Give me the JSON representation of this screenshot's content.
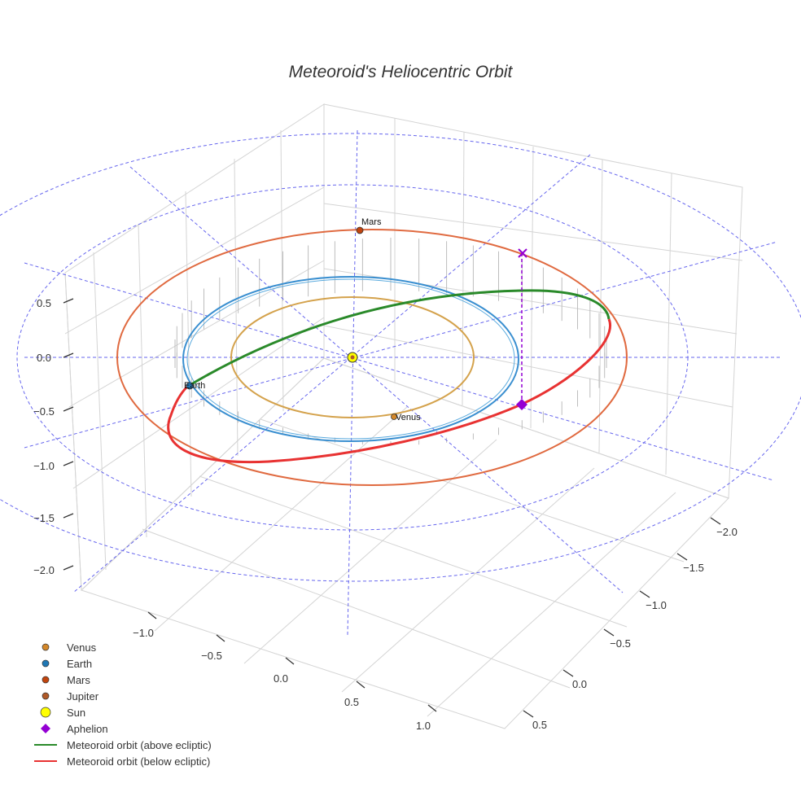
{
  "chart_data": {
    "type": "line3d",
    "title": "Meteoroid's Heliocentric Orbit",
    "x_ticks": [
      "−1.0",
      "−0.5",
      "0.0",
      "0.5",
      "1.0"
    ],
    "y_ticks": [
      "−2.0",
      "−1.5",
      "−1.0",
      "−0.5",
      "0.0",
      "0.5"
    ],
    "z_ticks": [
      "0.5",
      "0.0",
      "−0.5",
      "−1.0",
      "−1.5",
      "−2.0"
    ],
    "bodies": [
      {
        "name": "Venus",
        "label": "Venus",
        "color": "#d4882a"
      },
      {
        "name": "Earth",
        "label": "Earth",
        "color": "#1f77b4"
      },
      {
        "name": "Mars",
        "label": "Mars",
        "color": "#c1440e"
      },
      {
        "name": "Jupiter",
        "label": "",
        "color": "#b05a28"
      },
      {
        "name": "Sun",
        "label": "",
        "color": "#ffff00"
      }
    ],
    "planet_orbits": [
      {
        "name": "Venus",
        "a_au": 0.72,
        "color": "#d4a24c"
      },
      {
        "name": "Earth",
        "a_au": 1.0,
        "color": "#3a8fd0"
      },
      {
        "name": "Mars",
        "a_au": 1.52,
        "color": "#e06a40"
      }
    ],
    "meteoroid_orbit": {
      "above_ecliptic_color": "#2a8a2a",
      "below_ecliptic_color": "#e83232"
    },
    "aphelion_color": "#9400d3",
    "grid_color": "#6666ee",
    "legend": [
      {
        "label": "Venus",
        "marker": "circle",
        "color": "#d4882a"
      },
      {
        "label": "Earth",
        "marker": "circle",
        "color": "#1f77b4"
      },
      {
        "label": "Mars",
        "marker": "circle",
        "color": "#c1440e"
      },
      {
        "label": "Jupiter",
        "marker": "circle",
        "color": "#b05a28"
      },
      {
        "label": "Sun",
        "marker": "circle-large",
        "color": "#ffff00"
      },
      {
        "label": "Aphelion",
        "marker": "diamond",
        "color": "#9400d3"
      },
      {
        "label": "Meteoroid orbit (above ecliptic)",
        "marker": "line",
        "color": "#2a8a2a"
      },
      {
        "label": "Meteoroid orbit (below ecliptic)",
        "marker": "line",
        "color": "#e83232"
      }
    ]
  }
}
